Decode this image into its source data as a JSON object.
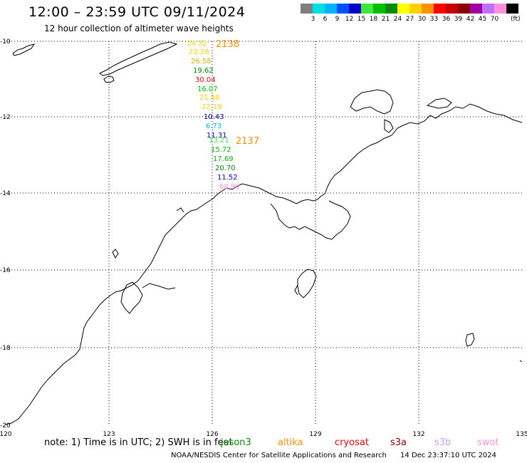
{
  "header": {
    "title": "12:00 – 23:59 UTC 09/11/2024",
    "subtitle": "12 hour collection of altimeter wave heights"
  },
  "legend": {
    "unit": "(ft)",
    "items": [
      {
        "label": "",
        "color": "#7f7f7f"
      },
      {
        "label": "3",
        "color": "#00e0e0"
      },
      {
        "label": "6",
        "color": "#00b4ff"
      },
      {
        "label": "9",
        "color": "#0050ff"
      },
      {
        "label": "12",
        "color": "#0000c8"
      },
      {
        "label": "15",
        "color": "#3ce83c"
      },
      {
        "label": "18",
        "color": "#00c000"
      },
      {
        "label": "21",
        "color": "#008c00"
      },
      {
        "label": "24",
        "color": "#ffff00"
      },
      {
        "label": "27",
        "color": "#ffd000"
      },
      {
        "label": "30",
        "color": "#ff9000"
      },
      {
        "label": "33",
        "color": "#ff0000"
      },
      {
        "label": "36",
        "color": "#c80000"
      },
      {
        "label": "39",
        "color": "#8c0000"
      },
      {
        "label": "42",
        "color": "#a000a0"
      },
      {
        "label": "45",
        "color": "#c070ff"
      },
      {
        "label": "70",
        "color": "#ff90e0"
      },
      {
        "label": "",
        "color": "#000000"
      }
    ]
  },
  "axes": {
    "lat_labels": [
      "-10",
      "-12",
      "-14",
      "-16",
      "-18",
      "-20"
    ],
    "lon_labels": [
      "120",
      "123",
      "126",
      "129",
      "132",
      "135"
    ]
  },
  "track": {
    "times": [
      {
        "label": "2138",
        "color": "#ff9000"
      },
      {
        "label": "2137",
        "color": "#ff9000"
      }
    ],
    "observations": [
      {
        "value": "24.32",
        "color": "#ffd000"
      },
      {
        "value": "23.26",
        "color": "#ffd000"
      },
      {
        "value": "26.58",
        "color": "#e0b000"
      },
      {
        "value": "19.62",
        "color": "#008c00"
      },
      {
        "value": "30.04",
        "color": "#ff0000"
      },
      {
        "value": "16.07",
        "color": "#00c000"
      },
      {
        "value": "21.88",
        "color": "#ffd000"
      },
      {
        "value": "22.19",
        "color": "#ffd000"
      },
      {
        "value": "10.43",
        "color": "#0000c8"
      },
      {
        "value": "6.73",
        "color": "#00b4ff"
      },
      {
        "value": "11.31",
        "color": "#0000c8"
      },
      {
        "value": "13.21",
        "color": "#3ce83c"
      },
      {
        "value": "15.72",
        "color": "#00c000"
      },
      {
        "value": "17.69",
        "color": "#00c000"
      },
      {
        "value": "20.70",
        "color": "#008c00"
      },
      {
        "value": "11.52",
        "color": "#0000c8"
      },
      {
        "value": "68.90",
        "color": "#ff90e0"
      }
    ]
  },
  "footer": {
    "note": "note: 1) Time is in UTC; 2) SWH is in feet",
    "satellites": [
      {
        "name": "jason3",
        "color": "#008c00"
      },
      {
        "name": "altika",
        "color": "#ff9000"
      },
      {
        "name": "cryosat",
        "color": "#ff0000"
      },
      {
        "name": "s3a",
        "color": "#8c0000"
      },
      {
        "name": "s3b",
        "color": "#c0a0ff"
      },
      {
        "name": "swot",
        "color": "#ff90e0"
      }
    ],
    "credit": "NOAA/NESDIS Center for Satellite Applications and Research",
    "timestamp": "14 Dec 23:37:10 UTC 2024"
  }
}
